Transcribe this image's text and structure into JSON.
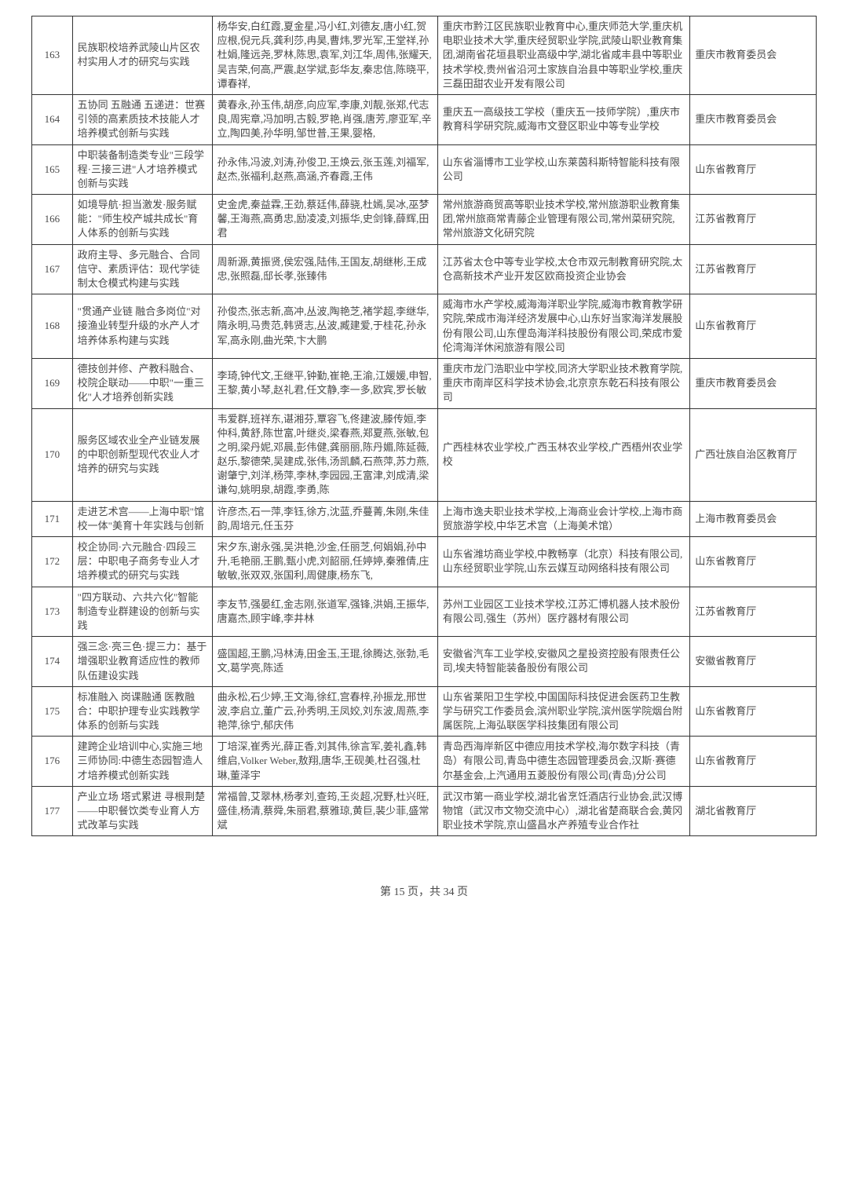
{
  "footer": {
    "page_current": "15",
    "page_total": "34",
    "prefix": "第 ",
    "middle": " 页，共 ",
    "suffix": " 页"
  },
  "rows": [
    {
      "num": "163",
      "title": "民族职校培养武陵山片区农村实用人才的研究与实践",
      "people": "杨华安,白红霞,夏金星,冯小红,刘德友,唐小红,贺应根,倪元兵,龚利莎,冉昊,曹炜,罗光军,王堂祥,孙杜娟,隆远尧,罗林,陈思,袁军,刘江华,周伟,张耀天,吴吉荣,何高,严震,赵学斌,彭华友,秦忠信,陈晓平,谭春祥,",
      "org": "重庆市黔江区民族职业教育中心,重庆师范大学,重庆机电职业技术大学,重庆经贸职业学院,武陵山职业教育集团,湖南省花垣县职业高级中学,湖北省咸丰县中等职业技术学校,贵州省沿河土家族自治县中等职业学校,重庆三磊田甜农业开发有限公司",
      "region": "重庆市教育委员会"
    },
    {
      "num": "164",
      "title": "五协同 五融通 五递进：世赛引领的高素质技术技能人才培养模式创新与实践",
      "people": "黄春永,孙玉伟,胡彦,向应军,李康,刘靓,张郑,代志良,周宪章,冯加明,古毅,罗艳,肖强,唐芳,廖亚军,辛立,陶四美,孙华明,邹世普,王果,婴格,",
      "org": "重庆五一高级技工学校（重庆五一技师学院）,重庆市教育科学研究院,威海市文登区职业中等专业学校",
      "region": "重庆市教育委员会"
    },
    {
      "num": "165",
      "title": "中职装备制造类专业\"三段学程·三接三进\"人才培养模式创新与实践",
      "people": "孙永伟,冯波,刘涛,孙俊卫,王焕云,张玉莲,刘福军,赵杰,张福利,赵燕,高涵,齐春霞,王伟",
      "org": "山东省淄博市工业学校,山东莱茵科斯特智能科技有限公司",
      "region": "山东省教育厅"
    },
    {
      "num": "166",
      "title": "如境导航·担当激发·服务赋能：\"师生校产城共成长\"育人体系的创新与实践",
      "people": "史金虎,秦益霖,王劲,蔡廷伟,薛骁,杜嫣,吴冰,巫梦馨,王海燕,高勇忠,励凌凌,刘振华,史剑锋,薛辉,田君",
      "org": "常州旅游商贸高等职业技术学校,常州旅游职业教育集团,常州旅商常青藤企业管理有限公司,常州菜研究院,常州旅游文化研究院",
      "region": "江苏省教育厅"
    },
    {
      "num": "167",
      "title": "政府主导、多元融合、合同信守、素质评估：现代学徒制太仓模式构建与实践",
      "people": "周新源,黄振贤,侯宏强,陆伟,王国友,胡继彬,王成忠,张照磊,邸长孝,张臻伟",
      "org": "江苏省太仓中等专业学校,太仓市双元制教育研究院,太仓高新技术产业开发区欧商投资企业协会",
      "region": "江苏省教育厅"
    },
    {
      "num": "168",
      "title": "\"贯通产业链 融合多岗位\"对接渔业转型升级的水产人才培养体系构建与实践",
      "people": "孙俊杰,张志新,高冲,丛波,陶艳芝,褚学超,李继华,隋永明,马贵范,韩贤志,丛波,臧建爱,于桂花,孙永军,高永刚,曲光荣,卞大鹏",
      "org": "威海市水产学校,威海海洋职业学院,威海市教育教学研究院,荣成市海洋经济发展中心,山东好当家海洋发展股份有限公司,山东俚岛海洋科技股份有限公司,荣成市爱伦湾海洋休闲旅游有限公司",
      "region": "山东省教育厅"
    },
    {
      "num": "169",
      "title": "德技创并修、产教科融合、校院企联动——中职\"一重三化\"人才培养创新实践",
      "people": "李琦,钟代文,王继平,钟勤,崔艳,王渝,江媛媛,申智,王黎,黄小琴,赵礼君,任文静,李一多,欧宾,罗长敏",
      "org": "重庆市龙门浩职业中学校,同济大学职业技术教育学院,重庆市南岸区科学技术协会,北京京东乾石科技有限公司",
      "region": "重庆市教育委员会"
    },
    {
      "num": "170",
      "title": "服务区域农业全产业链发展的中职创新型现代农业人才培养的研究与实践",
      "people": "韦爱群,班祥东,谌湘芬,覃容飞,佟建波,滕传姮,李仲科,黄舒,陈世富,叶继炎,梁春燕,郑夏燕,张敏,包之明,梁丹妮,邓晨,彭伟健,龚丽丽,陈丹媚,陈延薇,赵乐,黎德荣,吴建成,张伟,汤凯麟,石燕萍,苏力燕,谢肇宁,刘洋,杨萍,李林,李园园,王富津,刘成清,梁谦勾,姚明泉,胡霞,李勇,陈",
      "org": "广西桂林农业学校,广西玉林农业学校,广西梧州农业学校",
      "region": "广西壮族自治区教育厅"
    },
    {
      "num": "171",
      "title": "走进艺术宫——上海中职\"馆校一体\"美育十年实践与创新",
      "people": "许彦杰,石一萍,李钰,徐方,沈蓝,乔蔓菁,朱刚,朱佳韵,周培元,任玉芬",
      "org": "上海市逸夫职业技术学校,上海商业会计学校,上海市商贸旅游学校,中华艺术宫（上海美术馆）",
      "region": "上海市教育委员会"
    },
    {
      "num": "172",
      "title": "校企协同·六元融合·四段三层：中职电子商务专业人才培养模式的研究与实践",
      "people": "宋夕东,谢永强,吴洪艳,沙金,任丽芝,何娟娟,孙中升,毛艳丽,王鹏,甄小虎,刘韶丽,任婷婷,秦雅倩,庄敏敏,张双双,张国利,周健康,杨东飞,",
      "org": "山东省潍坊商业学校,中教畅享（北京）科技有限公司,山东经贸职业学院,山东云媒互动网络科技有限公司",
      "region": "山东省教育厅"
    },
    {
      "num": "173",
      "title": "\"四方联动、六共六化\"智能制造专业群建设的创新与实践",
      "people": "李友节,强晏红,金志刚,张道军,强锋,洪娟,王振华,唐嘉杰,顾宇峰,李井林",
      "org": "苏州工业园区工业技术学校,江苏汇博机器人技术股份有限公司,强生（苏州）医疗器材有限公司",
      "region": "江苏省教育厅"
    },
    {
      "num": "174",
      "title": "强三念·亮三色·提三力：基于增强职业教育适应性的教师队伍建设实践",
      "people": "盛国超,王鹏,冯林涛,田金玉,王琨,徐腾达,张勃,毛文,葛学亮,陈适",
      "org": "安徽省汽车工业学校,安徽风之星投资控股有限责任公司,埃夫特智能装备股份有限公司",
      "region": "安徽省教育厅"
    },
    {
      "num": "175",
      "title": "标准融入 岗课融通 医教融合：中职护理专业实践教学体系的创新与实践",
      "people": "曲永松,石少婷,王文海,徐红,宫春梓,孙振龙,邢世波,李启立,董广云,孙秀明,王凤姣,刘东波,周燕,李艳萍,徐宁,郁庆伟",
      "org": "山东省莱阳卫生学校,中国国际科技促进会医药卫生教学与研究工作委员会,滨州职业学院,滨州医学院烟台附属医院,上海弘联医学科技集团有限公司",
      "region": "山东省教育厅"
    },
    {
      "num": "176",
      "title": "建跨企业培训中心,实施三地三师协同:中德生态园智造人才培养模式创新实践",
      "people": "丁培深,崔秀光,薛正香,刘其伟,徐言军,姜礼鑫,韩维启,Volker Weber,敖翔,唐华,王砚美,杜召强,杜琳,董泽宇",
      "org": "青岛西海岸新区中德应用技术学校,海尔数字科技（青岛）有限公司,青岛中德生态园管理委员会,汉斯·赛德尔基金会,上汽通用五菱股份有限公司(青岛)分公司",
      "region": "山东省教育厅"
    },
    {
      "num": "177",
      "title": "产业立场 塔式累进 寻根荆楚——中职餐饮类专业育人方式改革与实践",
      "people": "常福曾,艾翠林,杨孝刘,查筠,王炎超,况野,杜兴旺,盛佳,杨清,蔡舜,朱丽君,蔡雅琼,黄巨,裴少菲,盛常斌",
      "org": "武汉市第一商业学校,湖北省烹饪酒店行业协会,武汉博物馆（武汉市文物交流中心）,湖北省楚商联合会,黄冈职业技术学院,京山盛昌水产养殖专业合作社",
      "region": "湖北省教育厅"
    }
  ]
}
